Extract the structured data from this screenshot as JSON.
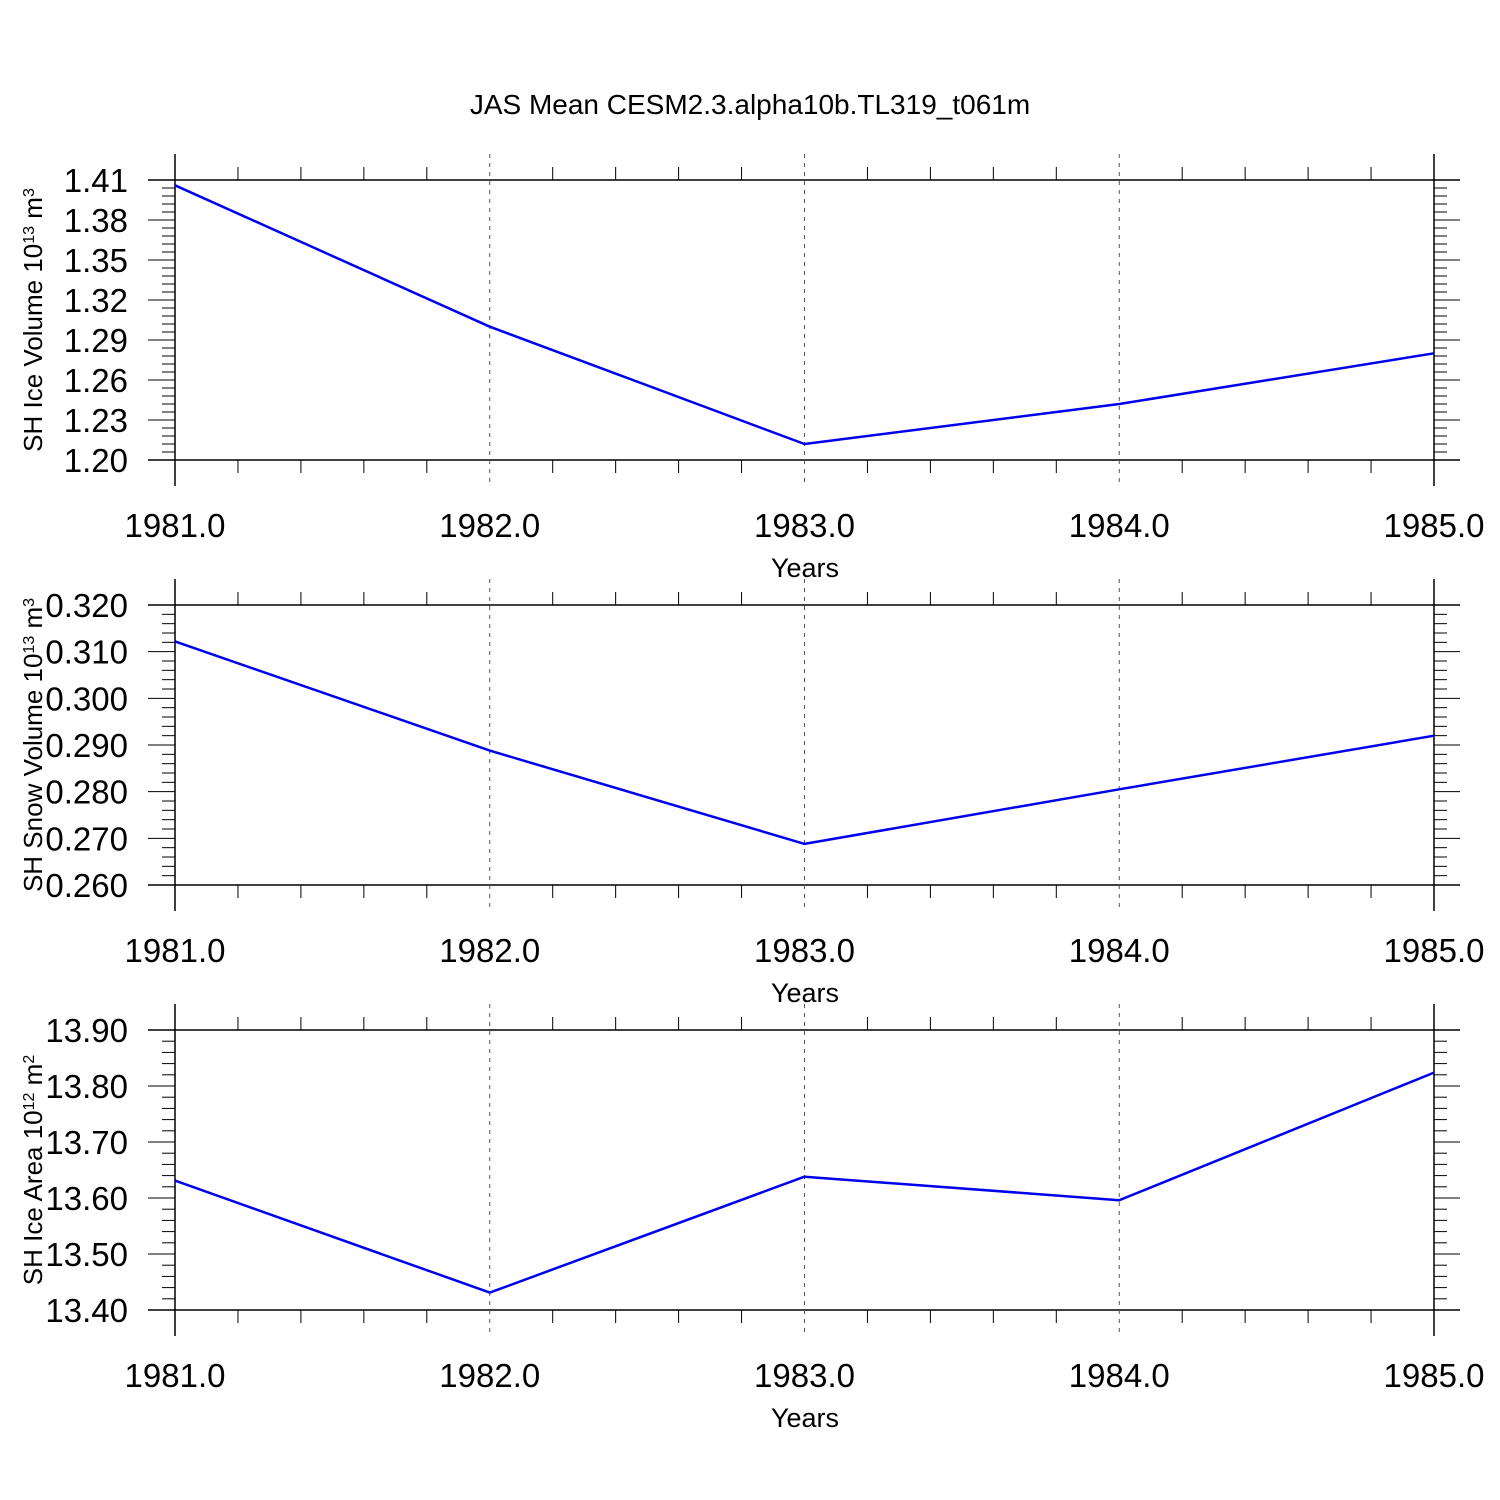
{
  "figure": {
    "title": "JAS Mean CESM2.3.alpha10b.TL319_t061m"
  },
  "colors": {
    "line": "#0000ee",
    "axis": "#000000",
    "grid": "#555555"
  },
  "chart_data": [
    {
      "type": "line",
      "title": "",
      "xlabel": "Years",
      "ylabel": {
        "main": "SH Ice Volume 10",
        "exponent": "13",
        "unit": " m",
        "unit_exponent": "3"
      },
      "x": [
        1981,
        1982,
        1983,
        1984,
        1985
      ],
      "x_tick_labels": [
        "1981.0",
        "1982.0",
        "1983.0",
        "1984.0",
        "1985.0"
      ],
      "xlim": [
        1981,
        1985
      ],
      "y_ticks": [
        1.2,
        1.23,
        1.26,
        1.29,
        1.32,
        1.35,
        1.38,
        1.41
      ],
      "y_tick_labels": [
        "1.20",
        "1.23",
        "1.26",
        "1.29",
        "1.32",
        "1.35",
        "1.38",
        "1.41"
      ],
      "ylim": [
        1.2,
        1.41
      ],
      "series": [
        {
          "values": [
            1.406,
            1.3,
            1.212,
            1.242,
            1.28
          ]
        }
      ],
      "grid": "vertical dashed at major x ticks"
    },
    {
      "type": "line",
      "title": "",
      "xlabel": "Years",
      "ylabel": {
        "main": "SH Snow Volume 10",
        "exponent": "13",
        "unit": " m",
        "unit_exponent": "3"
      },
      "x": [
        1981,
        1982,
        1983,
        1984,
        1985
      ],
      "x_tick_labels": [
        "1981.0",
        "1982.0",
        "1983.0",
        "1984.0",
        "1985.0"
      ],
      "xlim": [
        1981,
        1985
      ],
      "y_ticks": [
        0.26,
        0.27,
        0.28,
        0.29,
        0.3,
        0.31,
        0.32
      ],
      "y_tick_labels": [
        "0.260",
        "0.270",
        "0.280",
        "0.290",
        "0.300",
        "0.310",
        "0.320"
      ],
      "ylim": [
        0.26,
        0.32
      ],
      "series": [
        {
          "values": [
            0.3122,
            0.2888,
            0.2688,
            0.2805,
            0.292
          ]
        }
      ],
      "grid": "vertical dashed at major x ticks"
    },
    {
      "type": "line",
      "title": "",
      "xlabel": "Years",
      "ylabel": {
        "main": "SH Ice Area 10",
        "exponent": "12",
        "unit": " m",
        "unit_exponent": "2"
      },
      "x": [
        1981,
        1982,
        1983,
        1984,
        1985
      ],
      "x_tick_labels": [
        "1981.0",
        "1982.0",
        "1983.0",
        "1984.0",
        "1985.0"
      ],
      "xlim": [
        1981,
        1985
      ],
      "y_ticks": [
        13.4,
        13.5,
        13.6,
        13.7,
        13.8,
        13.9
      ],
      "y_tick_labels": [
        "13.40",
        "13.50",
        "13.60",
        "13.70",
        "13.80",
        "13.90"
      ],
      "ylim": [
        13.4,
        13.9
      ],
      "series": [
        {
          "values": [
            13.631,
            13.431,
            13.638,
            13.596,
            13.824
          ]
        }
      ],
      "grid": "vertical dashed at major x ticks"
    }
  ]
}
